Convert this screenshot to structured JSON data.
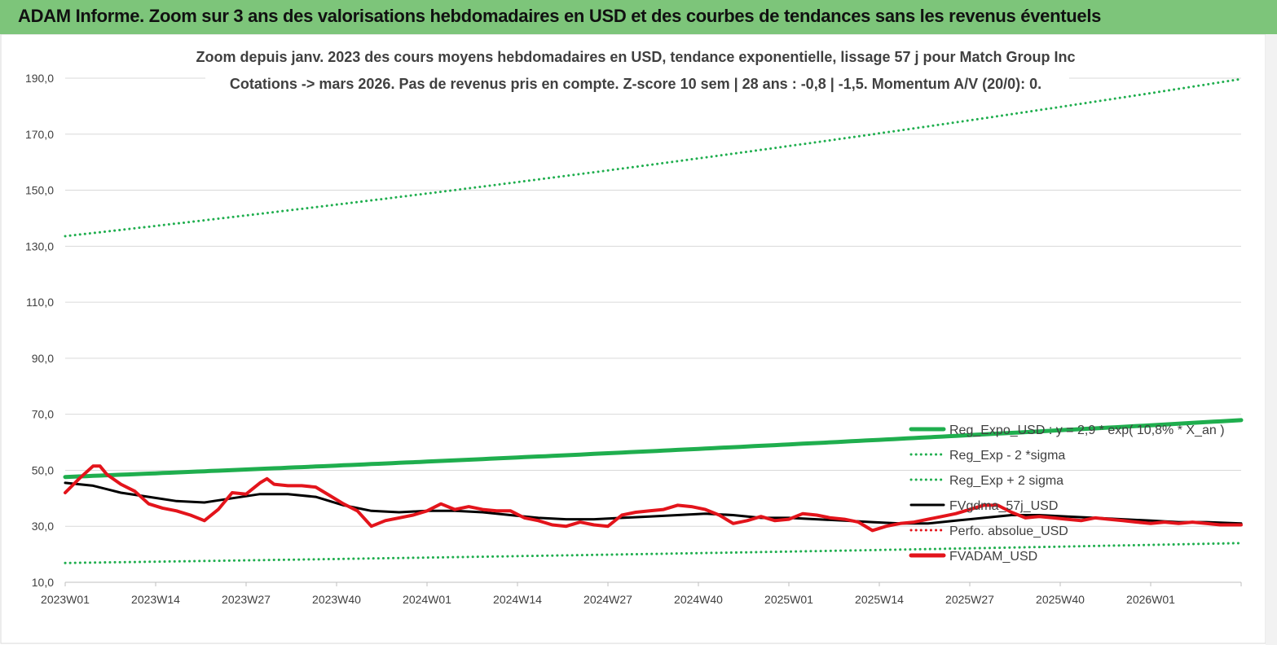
{
  "banner": {
    "title": "ADAM Informe. Zoom sur 3 ans des valorisations hebdomadaires en USD et des courbes de tendances sans les revenus éventuels"
  },
  "colors": {
    "banner_bg": "#7dc57a",
    "trend_green": "#1fae4e",
    "black": "#000000",
    "red": "#e3141b"
  },
  "chart_data": {
    "type": "line",
    "title": "",
    "subtitle_lines": [
      "Zoom depuis janv. 2023 des cours moyens hebdomadaires en USD, tendance exponentielle, lissage 57 j pour Match Group Inc",
      "Cotations -> mars 2026. Pas de revenus pris en compte. Z-score 10 sem | 28 ans : -0,8 | -1,5. Momentum A/V (20/0): 0."
    ],
    "xlabel": "",
    "ylabel": "",
    "ylim": [
      10,
      190
    ],
    "y_ticks": [
      "10,0",
      "30,0",
      "50,0",
      "70,0",
      "90,0",
      "110,0",
      "130,0",
      "150,0",
      "170,0",
      "190,0"
    ],
    "x_ticks": [
      "2023W01",
      "2023W14",
      "2023W27",
      "2023W40",
      "2024W01",
      "2024W14",
      "2024W27",
      "2024W40",
      "2025W01",
      "2025W14",
      "2025W27",
      "2025W40",
      "2026W01"
    ],
    "x_tick_weeks": [
      0,
      13,
      26,
      39,
      52,
      65,
      78,
      91,
      104,
      117,
      130,
      143,
      156
    ],
    "x_range_weeks": [
      0,
      169
    ],
    "grid": "horizontal",
    "legend_position": "right",
    "series": [
      {
        "name": "Reg_Expo_USD : y = 2,9 * exp( 10,8% * X_an )",
        "style": "solid-thick",
        "color": "#1fae4e",
        "weeks": [
          0,
          169
        ],
        "growth": "exponential",
        "values": [
          47.6,
          67.9
        ]
      },
      {
        "name": "Reg_Exp - 2 *sigma",
        "style": "dotted",
        "color": "#1fae4e",
        "weeks": [
          0,
          169
        ],
        "growth": "exponential",
        "values": [
          16.9,
          24.0
        ]
      },
      {
        "name": "Reg_Exp + 2 sigma",
        "style": "dotted",
        "color": "#1fae4e",
        "weeks": [
          0,
          169
        ],
        "growth": "exponential",
        "values": [
          133.6,
          189.7
        ]
      },
      {
        "name": "FVgdma_57j_USD",
        "style": "solid",
        "color": "#000000",
        "weeks": [
          0,
          4,
          8,
          12,
          16,
          20,
          24,
          28,
          32,
          36,
          40,
          44,
          48,
          52,
          56,
          60,
          64,
          68,
          72,
          76,
          80,
          84,
          88,
          92,
          96,
          100,
          104,
          108,
          112,
          116,
          120,
          124,
          128,
          132,
          136,
          140,
          144,
          148,
          152,
          156,
          160,
          164,
          169
        ],
        "values": [
          45.5,
          44.5,
          42,
          40.5,
          39,
          38.5,
          40,
          41.5,
          41.5,
          40.5,
          37.5,
          35.5,
          35,
          35.5,
          35.5,
          35,
          34,
          33,
          32.5,
          32.5,
          33,
          33.5,
          34,
          34.5,
          34,
          33,
          33,
          32.5,
          32,
          31.5,
          31,
          31,
          32,
          33,
          34,
          34,
          33.5,
          33,
          32.5,
          32,
          31.5,
          31.5,
          31
        ]
      },
      {
        "name": "Perfo. absolue_USD",
        "style": "dotted",
        "color": "#e3141b",
        "weeks": [],
        "values": []
      },
      {
        "name": "FVADAM_USD",
        "style": "solid-thick",
        "color": "#e3141b",
        "weeks": [
          0,
          2,
          4,
          5,
          6,
          8,
          10,
          12,
          14,
          16,
          18,
          20,
          22,
          24,
          26,
          28,
          29,
          30,
          32,
          34,
          36,
          38,
          40,
          42,
          44,
          46,
          48,
          50,
          52,
          54,
          56,
          58,
          60,
          62,
          64,
          66,
          68,
          70,
          72,
          74,
          76,
          78,
          80,
          82,
          84,
          86,
          88,
          90,
          92,
          94,
          96,
          98,
          100,
          102,
          104,
          106,
          108,
          110,
          112,
          114,
          116,
          118,
          120,
          122,
          124,
          126,
          128,
          130,
          132,
          134,
          136,
          138,
          140,
          142,
          144,
          146,
          148,
          150,
          152,
          154,
          156,
          158,
          160,
          162,
          164,
          166,
          169
        ],
        "values": [
          42,
          47,
          51.5,
          51.5,
          48.5,
          45,
          42.5,
          38,
          36.5,
          35.5,
          34,
          32,
          36,
          42,
          41.5,
          45.5,
          47,
          45,
          44.5,
          44.5,
          44,
          41,
          38,
          35.5,
          30,
          32,
          33,
          34,
          35.5,
          38,
          36,
          37,
          36,
          35.5,
          35.5,
          33,
          32,
          30.5,
          30,
          31.5,
          30.5,
          30,
          34,
          35,
          35.5,
          36,
          37.5,
          37,
          36,
          34,
          31,
          32,
          33.5,
          32,
          32.5,
          34.5,
          34,
          33,
          32.5,
          31.5,
          28.5,
          30,
          31,
          31.5,
          32.5,
          33.5,
          34.5,
          36,
          37.5,
          37.5,
          35,
          33,
          33.5,
          33,
          32.5,
          32,
          33,
          32.5,
          32,
          31.5,
          31,
          31.5,
          31,
          31.5,
          31,
          30.5,
          30.5
        ]
      }
    ]
  }
}
